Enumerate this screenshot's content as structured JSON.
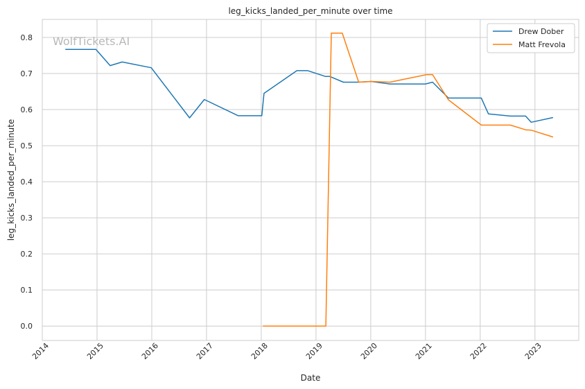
{
  "chart_data": {
    "type": "line",
    "title": "leg_kicks_landed_per_minute over time",
    "xlabel": "Date",
    "ylabel": "leg_kicks_landed_per_minute",
    "watermark": "WolfTickets.AI",
    "xlim": [
      2014.0,
      2023.8
    ],
    "ylim": [
      -0.04,
      0.85
    ],
    "xticks": [
      2014,
      2015,
      2016,
      2017,
      2018,
      2019,
      2020,
      2021,
      2022,
      2023
    ],
    "xtick_labels": [
      "2014",
      "2015",
      "2016",
      "2017",
      "2018",
      "2019",
      "2020",
      "2021",
      "2022",
      "2023"
    ],
    "yticks": [
      0.0,
      0.1,
      0.2,
      0.3,
      0.4,
      0.5,
      0.6,
      0.7,
      0.8
    ],
    "ytick_labels": [
      "0.0",
      "0.1",
      "0.2",
      "0.3",
      "0.4",
      "0.5",
      "0.6",
      "0.7",
      "0.8"
    ],
    "grid": true,
    "legend": "top-right",
    "colors": {
      "grid": "#cccccc",
      "axes": "#cccccc",
      "watermark": "#b8b8b8"
    },
    "series": [
      {
        "name": "Drew Dober",
        "color": "#1f77b4",
        "x": [
          2014.42,
          2014.98,
          2015.24,
          2015.46,
          2015.99,
          2016.69,
          2016.96,
          2017.58,
          2018.01,
          2018.05,
          2018.65,
          2018.85,
          2019.17,
          2019.25,
          2019.5,
          2019.76,
          2020.01,
          2020.35,
          2021.0,
          2021.13,
          2021.42,
          2022.02,
          2022.15,
          2022.55,
          2022.83,
          2022.93,
          2023.33
        ],
        "y": [
          0.767,
          0.767,
          0.722,
          0.732,
          0.716,
          0.577,
          0.628,
          0.583,
          0.583,
          0.645,
          0.708,
          0.708,
          0.692,
          0.692,
          0.676,
          0.676,
          0.678,
          0.671,
          0.671,
          0.676,
          0.632,
          0.632,
          0.588,
          0.582,
          0.582,
          0.565,
          0.578
        ]
      },
      {
        "name": "Matt Frevola",
        "color": "#ff7f0e",
        "x": [
          2018.03,
          2019.18,
          2019.28,
          2019.48,
          2019.78,
          2020.02,
          2020.35,
          2021.02,
          2021.13,
          2021.42,
          2022.02,
          2022.55,
          2022.83,
          2022.93,
          2023.33
        ],
        "y": [
          0.0,
          0.0,
          0.812,
          0.812,
          0.676,
          0.678,
          0.676,
          0.697,
          0.697,
          0.627,
          0.557,
          0.557,
          0.544,
          0.543,
          0.524
        ]
      }
    ]
  }
}
